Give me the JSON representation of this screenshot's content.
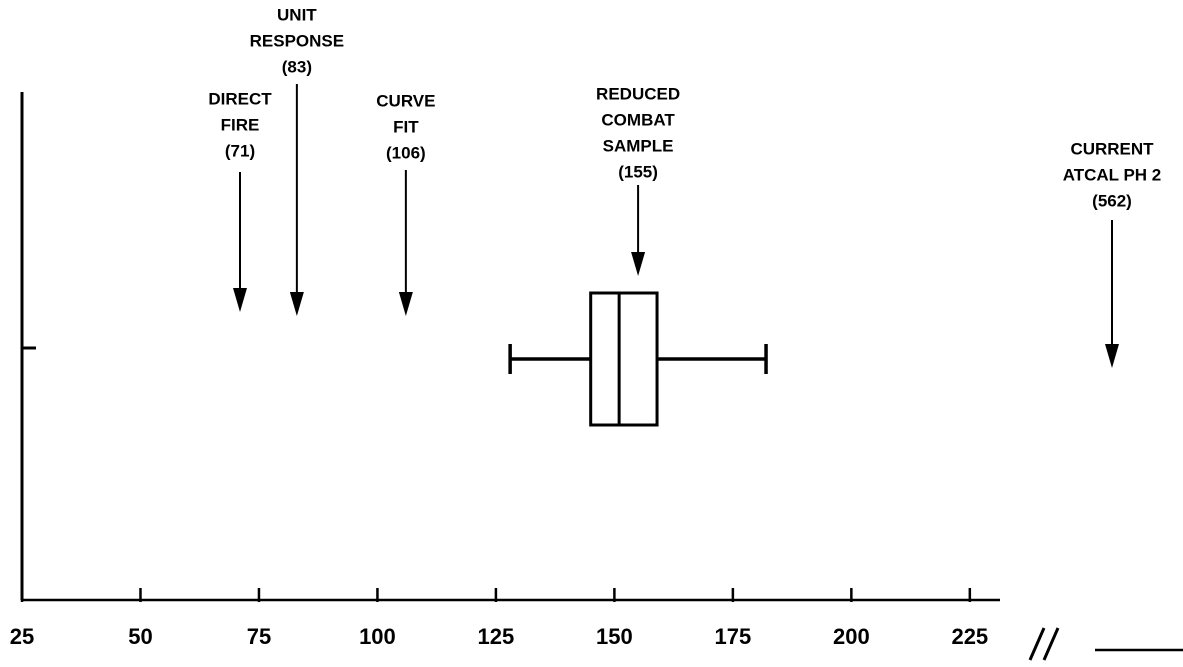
{
  "chart_data": {
    "type": "box",
    "xlim": [
      25,
      232
    ],
    "xticks": [
      25,
      50,
      75,
      100,
      125,
      150,
      175,
      200,
      225
    ],
    "box": {
      "whisker_low": 128,
      "q1": 145,
      "median": 151,
      "q3": 159,
      "whisker_high": 182
    },
    "color": "#000000",
    "annotations": [
      {
        "label": [
          "DIRECT",
          "FIRE"
        ],
        "value": 71,
        "value_label": "(71)"
      },
      {
        "label": [
          "UNIT",
          "RESPONSE"
        ],
        "value": 83,
        "value_label": "(83)"
      },
      {
        "label": [
          "CURVE",
          "FIT"
        ],
        "value": 106,
        "value_label": "(106)"
      },
      {
        "label": [
          "REDUCED",
          "COMBAT",
          "SAMPLE"
        ],
        "value": 155,
        "value_label": "(155)"
      },
      {
        "label": [
          "CURRENT",
          "ATCAL PH 2"
        ],
        "value": 562,
        "value_label": "(562)"
      }
    ]
  }
}
